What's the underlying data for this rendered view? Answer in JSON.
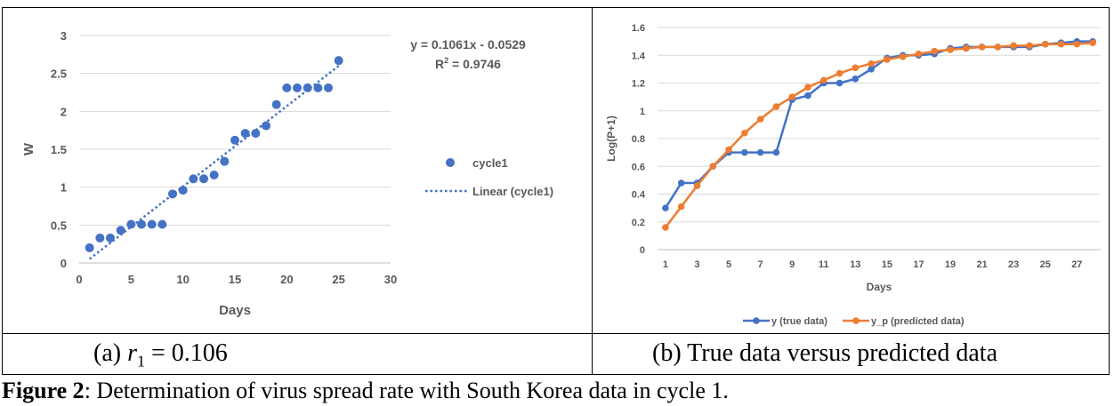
{
  "chart_data": [
    {
      "type": "scatter",
      "panel": "(a)",
      "xlabel": "Days",
      "ylabel": "W",
      "xlim": [
        0,
        30
      ],
      "ylim": [
        0,
        3
      ],
      "x_ticks": [
        "0",
        "5",
        "10",
        "15",
        "20",
        "25",
        "30"
      ],
      "y_ticks": [
        "0",
        "0.5",
        "1",
        "1.5",
        "2",
        "2.5",
        "3"
      ],
      "grid": "horizontal",
      "legend_position": "right",
      "series": [
        {
          "name": "cycle1",
          "marker": "circle",
          "color": "#4472C4",
          "x": [
            1,
            2,
            3,
            4,
            5,
            6,
            7,
            8,
            9,
            10,
            11,
            12,
            13,
            14,
            15,
            16,
            17,
            18,
            19,
            20,
            21,
            22,
            23,
            24,
            25
          ],
          "y": [
            0.2,
            0.33,
            0.33,
            0.43,
            0.51,
            0.51,
            0.51,
            0.51,
            0.91,
            0.96,
            1.11,
            1.11,
            1.16,
            1.34,
            1.62,
            1.71,
            1.71,
            1.81,
            2.09,
            2.31,
            2.31,
            2.31,
            2.31,
            2.31,
            2.67
          ]
        },
        {
          "name": "Linear (cycle1)",
          "style": "dotted",
          "color": "#4472C4",
          "slope": 0.1061,
          "intercept": -0.0529,
          "x_range": [
            1,
            25
          ]
        }
      ],
      "annotations": {
        "equation": "y = 0.1061x - 0.0529",
        "r2_prefix": "R",
        "r2_sup": "2",
        "r2_value": " = 0.9746"
      }
    },
    {
      "type": "line",
      "panel": "(b)",
      "xlabel": "Days",
      "ylabel": "Log(P+1)",
      "ylim": [
        0,
        1.6
      ],
      "x_ticks": [
        "1",
        "3",
        "5",
        "7",
        "9",
        "11",
        "13",
        "15",
        "17",
        "19",
        "21",
        "23",
        "25",
        "27"
      ],
      "y_ticks": [
        "0",
        "0.2",
        "0.4",
        "0.6",
        "0.8",
        "1",
        "1.2",
        "1.4",
        "1.6"
      ],
      "grid": "horizontal",
      "legend_position": "bottom",
      "x": [
        1,
        2,
        3,
        4,
        5,
        6,
        7,
        8,
        9,
        10,
        11,
        12,
        13,
        14,
        15,
        16,
        17,
        18,
        19,
        20,
        21,
        22,
        23,
        24,
        25,
        26,
        27,
        28
      ],
      "series": [
        {
          "name": "y (true data)",
          "color": "#4472C4",
          "values": [
            0.3,
            0.48,
            0.48,
            0.6,
            0.7,
            0.7,
            0.7,
            0.7,
            1.08,
            1.11,
            1.2,
            1.2,
            1.23,
            1.3,
            1.38,
            1.4,
            1.4,
            1.41,
            1.45,
            1.46,
            1.46,
            1.46,
            1.46,
            1.46,
            1.48,
            1.49,
            1.5,
            1.5
          ]
        },
        {
          "name": "y_p (predicted data)",
          "color": "#ED7D31",
          "values": [
            0.16,
            0.31,
            0.46,
            0.6,
            0.72,
            0.84,
            0.94,
            1.03,
            1.1,
            1.17,
            1.22,
            1.27,
            1.31,
            1.34,
            1.37,
            1.39,
            1.41,
            1.43,
            1.44,
            1.45,
            1.46,
            1.46,
            1.47,
            1.47,
            1.48,
            1.48,
            1.48,
            1.49
          ]
        }
      ]
    }
  ],
  "captions": {
    "a_label": "(a) ",
    "a_math": "r",
    "a_sub": "1",
    "a_rest": " = 0.106",
    "b": "(b) True data versus predicted data"
  },
  "figure_caption": {
    "label": "Figure 2",
    "text": ": Determination of virus spread rate with South Korea data in cycle 1."
  }
}
